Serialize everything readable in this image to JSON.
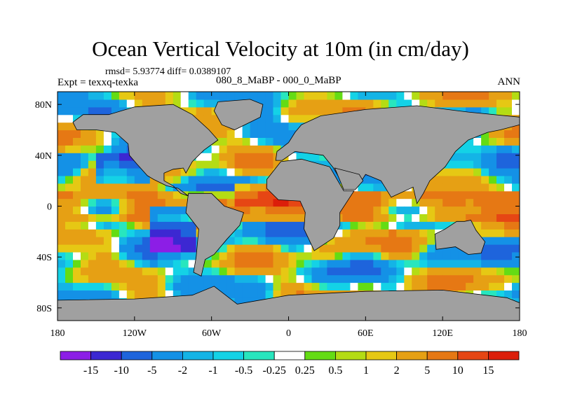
{
  "chart_data": {
    "type": "heatmap",
    "title": "Ocean Vertical Velocity at 10m (in cm/day)",
    "stats_text": "rmsd= 5.93774  diff= 0.0389107",
    "experiment_label": "Expt = texxq-texka",
    "comparison_label": "080_8_MaBP - 000_0_MaBP",
    "season_label": "ANN",
    "projection": "cylindrical equidistant",
    "x_ticks": [
      {
        "value": -180,
        "label": "180"
      },
      {
        "value": -120,
        "label": "120W"
      },
      {
        "value": -60,
        "label": "60W"
      },
      {
        "value": 0,
        "label": "0"
      },
      {
        "value": 60,
        "label": "60E"
      },
      {
        "value": 120,
        "label": "120E"
      },
      {
        "value": 180,
        "label": "180"
      }
    ],
    "y_ticks": [
      {
        "value": 80,
        "label": "80N"
      },
      {
        "value": 40,
        "label": "40N"
      },
      {
        "value": 0,
        "label": "0"
      },
      {
        "value": -40,
        "label": "40S"
      },
      {
        "value": -80,
        "label": "80S"
      }
    ],
    "xlim": [
      -180,
      180
    ],
    "ylim": [
      -90,
      90
    ],
    "colorbar": {
      "levels": [
        "-15",
        "-10",
        "-5",
        "-2",
        "-1",
        "-0.5",
        "-0.25",
        "0.25",
        "0.5",
        "1",
        "2",
        "5",
        "10",
        "15"
      ],
      "colors": [
        "#8c1ee6",
        "#3c28d2",
        "#1e64dc",
        "#1491e6",
        "#14b4e6",
        "#14d2e6",
        "#28e6be",
        "#ffffff",
        "#64dc14",
        "#b4dc14",
        "#e6c814",
        "#e6a014",
        "#e67814",
        "#e64614",
        "#dc1e0a"
      ]
    },
    "land_color": "#a0a0a0",
    "land_masses": [
      {
        "name": "North America",
        "polygon": [
          [
            -168,
            66
          ],
          [
            -160,
            72
          ],
          [
            -140,
            72
          ],
          [
            -120,
            78
          ],
          [
            -90,
            80
          ],
          [
            -75,
            72
          ],
          [
            -62,
            60
          ],
          [
            -55,
            52
          ],
          [
            -66,
            44
          ],
          [
            -75,
            35
          ],
          [
            -80,
            26
          ],
          [
            -82,
            30
          ],
          [
            -90,
            29
          ],
          [
            -97,
            26
          ],
          [
            -97,
            20
          ],
          [
            -90,
            16
          ],
          [
            -84,
            10
          ],
          [
            -78,
            8
          ],
          [
            -86,
            14
          ],
          [
            -95,
            16
          ],
          [
            -105,
            21
          ],
          [
            -110,
            24
          ],
          [
            -118,
            33
          ],
          [
            -124,
            40
          ],
          [
            -125,
            49
          ],
          [
            -135,
            58
          ],
          [
            -150,
            60
          ],
          [
            -165,
            60
          ]
        ]
      },
      {
        "name": "Greenland",
        "polygon": [
          [
            -55,
            82
          ],
          [
            -30,
            84
          ],
          [
            -20,
            80
          ],
          [
            -22,
            70
          ],
          [
            -42,
            60
          ],
          [
            -52,
            64
          ],
          [
            -58,
            75
          ]
        ]
      },
      {
        "name": "South America",
        "polygon": [
          [
            -78,
            10
          ],
          [
            -60,
            10
          ],
          [
            -50,
            0
          ],
          [
            -35,
            -5
          ],
          [
            -38,
            -15
          ],
          [
            -48,
            -26
          ],
          [
            -58,
            -38
          ],
          [
            -65,
            -42
          ],
          [
            -68,
            -55
          ],
          [
            -74,
            -52
          ],
          [
            -72,
            -40
          ],
          [
            -70,
            -18
          ],
          [
            -80,
            -5
          ]
        ]
      },
      {
        "name": "Africa",
        "polygon": [
          [
            -17,
            21
          ],
          [
            -6,
            35
          ],
          [
            10,
            37
          ],
          [
            32,
            31
          ],
          [
            43,
            12
          ],
          [
            51,
            12
          ],
          [
            40,
            -5
          ],
          [
            40,
            -15
          ],
          [
            35,
            -25
          ],
          [
            20,
            -35
          ],
          [
            12,
            -18
          ],
          [
            13,
            -5
          ],
          [
            9,
            4
          ],
          [
            -8,
            5
          ],
          [
            -17,
            14
          ]
        ]
      },
      {
        "name": "Eurasia",
        "polygon": [
          [
            -10,
            36
          ],
          [
            -9,
            43
          ],
          [
            0,
            50
          ],
          [
            5,
            58
          ],
          [
            10,
            64
          ],
          [
            25,
            71
          ],
          [
            60,
            76
          ],
          [
            100,
            79
          ],
          [
            140,
            74
          ],
          [
            180,
            70
          ],
          [
            180,
            64
          ],
          [
            165,
            60
          ],
          [
            155,
            58
          ],
          [
            140,
            52
          ],
          [
            130,
            43
          ],
          [
            122,
            31
          ],
          [
            110,
            20
          ],
          [
            105,
            10
          ],
          [
            100,
            2
          ],
          [
            97,
            15
          ],
          [
            80,
            7
          ],
          [
            72,
            20
          ],
          [
            60,
            25
          ],
          [
            55,
            17
          ],
          [
            45,
            13
          ],
          [
            35,
            30
          ],
          [
            27,
            40
          ],
          [
            5,
            43
          ],
          [
            -5,
            36
          ]
        ]
      },
      {
        "name": "Arabian Peninsula",
        "polygon": [
          [
            36,
            30
          ],
          [
            55,
            25
          ],
          [
            58,
            20
          ],
          [
            52,
            13
          ],
          [
            43,
            13
          ]
        ]
      },
      {
        "name": "Australia",
        "polygon": [
          [
            114,
            -22
          ],
          [
            122,
            -18
          ],
          [
            131,
            -12
          ],
          [
            137,
            -12
          ],
          [
            142,
            -11
          ],
          [
            146,
            -19
          ],
          [
            153,
            -28
          ],
          [
            150,
            -37
          ],
          [
            140,
            -38
          ],
          [
            130,
            -32
          ],
          [
            115,
            -34
          ]
        ]
      },
      {
        "name": "Antarctica",
        "polygon": [
          [
            -180,
            -74
          ],
          [
            -120,
            -73
          ],
          [
            -75,
            -70
          ],
          [
            -58,
            -63
          ],
          [
            -40,
            -77
          ],
          [
            0,
            -70
          ],
          [
            60,
            -67
          ],
          [
            120,
            -66
          ],
          [
            170,
            -72
          ],
          [
            180,
            -76
          ],
          [
            180,
            -90
          ],
          [
            -180,
            -90
          ]
        ]
      }
    ]
  }
}
